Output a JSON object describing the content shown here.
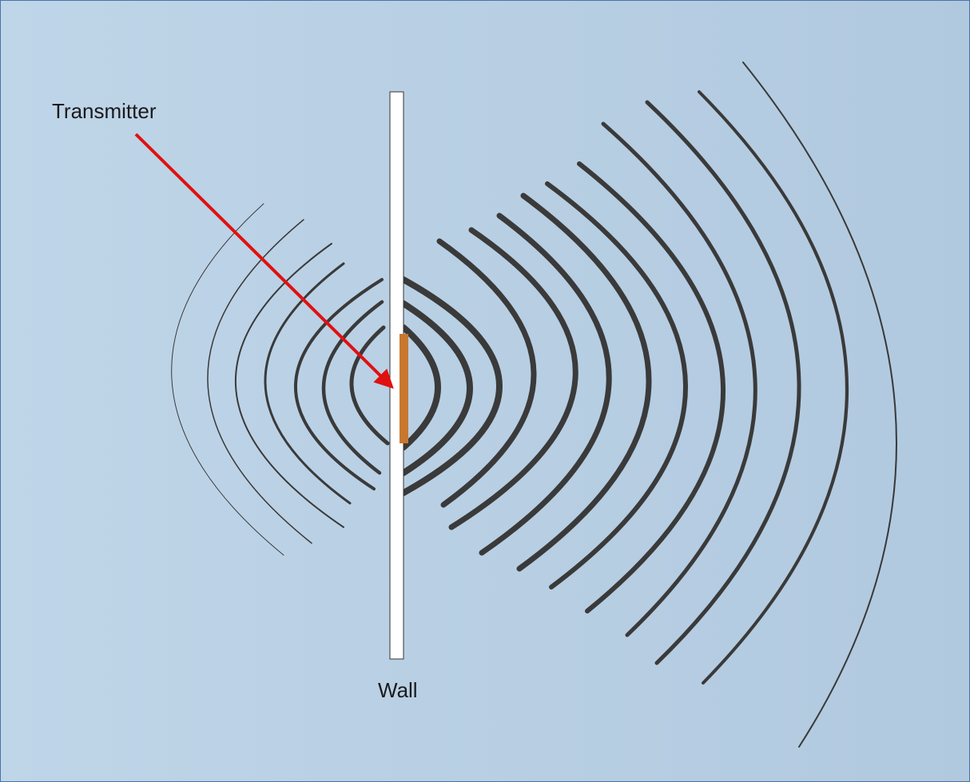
{
  "labels": {
    "transmitter": "Transmitter",
    "wall": "Wall"
  }
}
